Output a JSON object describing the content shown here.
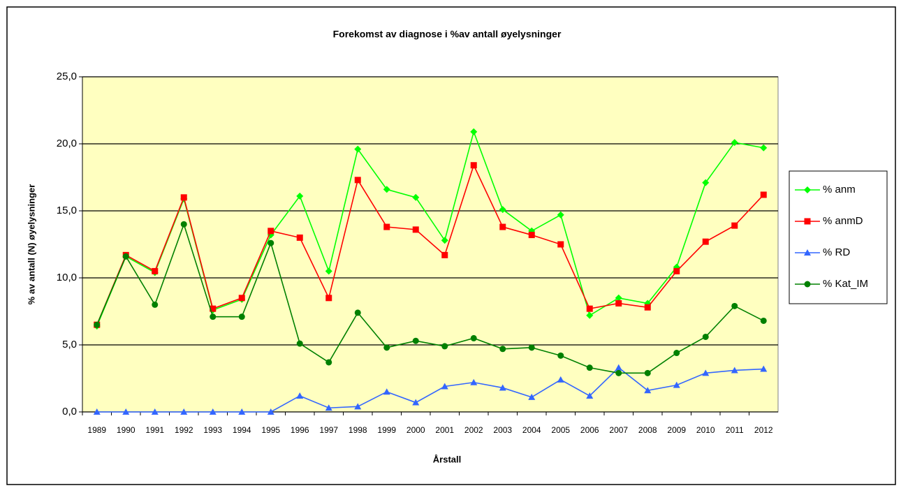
{
  "chart_data": {
    "type": "line",
    "title": "Forekomst av diagnose i %av antall øyelysninger",
    "x_label": "Årstall",
    "y_label": "% av antall (N) øyelysninger",
    "categories": [
      "1989",
      "1990",
      "1991",
      "1992",
      "1993",
      "1994",
      "1995",
      "1996",
      "1997",
      "1998",
      "1999",
      "2000",
      "2001",
      "2002",
      "2003",
      "2004",
      "2005",
      "2006",
      "2007",
      "2008",
      "2009",
      "2010",
      "2011",
      "2012"
    ],
    "series": [
      {
        "name": "% anm",
        "color": "#00ff00",
        "marker": "diamond",
        "values": [
          6.4,
          11.6,
          10.4,
          15.9,
          7.6,
          8.4,
          13.2,
          16.1,
          10.5,
          19.6,
          16.6,
          16.0,
          12.8,
          20.9,
          15.1,
          13.5,
          14.7,
          7.2,
          8.5,
          8.1,
          10.8,
          17.1,
          20.1,
          19.7
        ]
      },
      {
        "name": "% anmD",
        "color": "#ff0000",
        "marker": "square",
        "values": [
          6.5,
          11.7,
          10.5,
          16.0,
          7.7,
          8.5,
          13.5,
          13.0,
          8.5,
          17.3,
          13.8,
          13.6,
          11.7,
          18.4,
          13.8,
          13.2,
          12.5,
          7.7,
          8.1,
          7.8,
          10.5,
          12.7,
          13.9,
          16.2
        ]
      },
      {
        "name": "% RD",
        "color": "#3366ff",
        "marker": "triangle",
        "values": [
          0,
          0,
          0,
          0,
          0,
          0,
          0,
          1.2,
          0.3,
          0.4,
          1.5,
          0.7,
          1.9,
          2.2,
          1.8,
          1.1,
          2.4,
          1.2,
          3.3,
          1.6,
          2.0,
          2.9,
          3.1,
          3.2
        ]
      },
      {
        "name": "% Kat_IM",
        "color": "#008000",
        "marker": "circle",
        "values": [
          6.5,
          11.6,
          8.0,
          14.0,
          7.1,
          7.1,
          12.6,
          5.1,
          3.7,
          7.4,
          4.8,
          5.3,
          4.9,
          5.5,
          4.7,
          4.8,
          4.2,
          3.3,
          2.9,
          2.9,
          4.4,
          5.6,
          7.9,
          6.8
        ]
      }
    ],
    "ylim": [
      0,
      25
    ],
    "yticks": [
      {
        "value": 0,
        "label": "0,0"
      },
      {
        "value": 5,
        "label": "5,0"
      },
      {
        "value": 10,
        "label": "10,0"
      },
      {
        "value": 15,
        "label": "15,0"
      },
      {
        "value": 20,
        "label": "20,0"
      },
      {
        "value": 25,
        "label": "25,0"
      }
    ],
    "grid": true,
    "legend": "right",
    "plot_background": "#ffffc0"
  }
}
